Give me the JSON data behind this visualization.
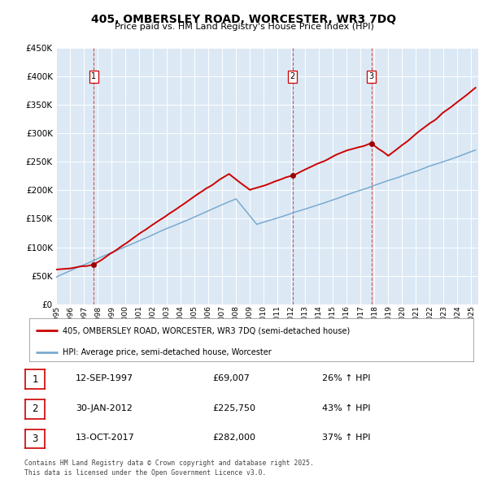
{
  "title": "405, OMBERSLEY ROAD, WORCESTER, WR3 7DQ",
  "subtitle": "Price paid vs. HM Land Registry's House Price Index (HPI)",
  "bg_color": "#dce9f5",
  "fig_bg_color": "#ffffff",
  "red_line_color": "#cc0000",
  "blue_line_color": "#7aaacf",
  "sale_marker_color": "#990000",
  "vline_color": "#cc0000",
  "ylim": [
    0,
    450000
  ],
  "yticks": [
    0,
    50000,
    100000,
    150000,
    200000,
    250000,
    300000,
    350000,
    400000,
    450000
  ],
  "sales": [
    {
      "date_num": 1997.71,
      "price": 69007,
      "label": "1"
    },
    {
      "date_num": 2012.08,
      "price": 225750,
      "label": "2"
    },
    {
      "date_num": 2017.78,
      "price": 282000,
      "label": "3"
    }
  ],
  "legend_entries": [
    "405, OMBERSLEY ROAD, WORCESTER, WR3 7DQ (semi-detached house)",
    "HPI: Average price, semi-detached house, Worcester"
  ],
  "table_rows": [
    {
      "num": "1",
      "date": "12-SEP-1997",
      "price": "£69,007",
      "pct": "26% ↑ HPI"
    },
    {
      "num": "2",
      "date": "30-JAN-2012",
      "price": "£225,750",
      "pct": "43% ↑ HPI"
    },
    {
      "num": "3",
      "date": "13-OCT-2017",
      "price": "£282,000",
      "pct": "37% ↑ HPI"
    }
  ],
  "footnote": "Contains HM Land Registry data © Crown copyright and database right 2025.\nThis data is licensed under the Open Government Licence v3.0.",
  "xmin": 1995.0,
  "xmax": 2025.5
}
